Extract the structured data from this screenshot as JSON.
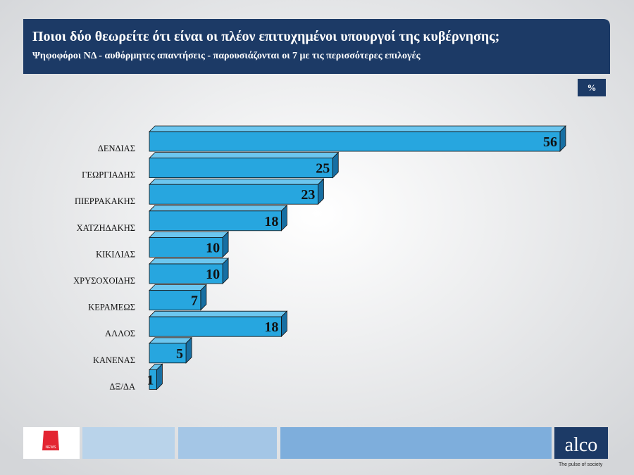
{
  "chart_data": {
    "type": "bar3d",
    "orientation": "horizontal",
    "title": "Ποιοι δύο θεωρείτε ότι είναι οι πλέον επιτυχημένοι υπουργοί της κυβέρνησης;",
    "subtitle": "Ψηφοφόροι ΝΔ - αυθόρμητες απαντήσεις - παρουσιάζονται οι 7 με τις περισσότερες επιλογές",
    "unit_label": "%",
    "categories": [
      "ΔΕΝΔΙΑΣ",
      "ΓΕΩΡΓΙΑΔΗΣ",
      "ΠΙΕΡΡΑΚΑΚΗΣ",
      "ΧΑΤΖΗΔΑΚΗΣ",
      "ΚΙΚΙΛΙΑΣ",
      "ΧΡΥΣΟΧΟΙΔΗΣ",
      "ΚΕΡΑΜΕΩΣ",
      "ΑΛΛΟΣ",
      "ΚΑΝΕΝΑΣ",
      "ΔΞ/ΔΑ"
    ],
    "values": [
      56,
      25,
      23,
      18,
      10,
      10,
      7,
      18,
      5,
      1
    ],
    "color": "#27a6df"
  },
  "footer": {
    "channel_logo": "NEWS",
    "brand": "alco",
    "tagline": "The pulse of society"
  }
}
